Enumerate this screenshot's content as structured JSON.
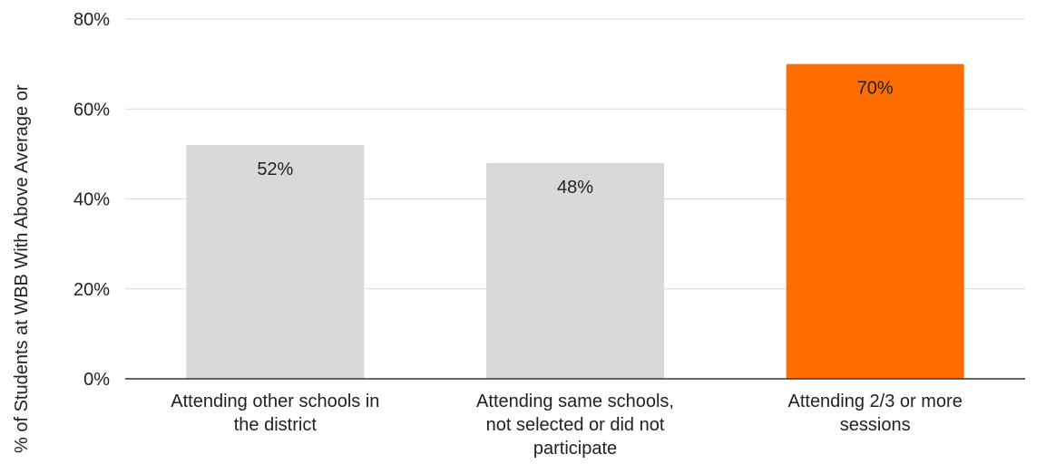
{
  "chart_data": {
    "type": "bar",
    "ylabel": "% of Students at WBB With Above Average or",
    "xlabel": "",
    "ylim": [
      0,
      80
    ],
    "yticks": [
      0,
      20,
      40,
      60,
      80
    ],
    "ytick_labels": [
      "0%",
      "20%",
      "40%",
      "60%",
      "80%"
    ],
    "grid": true,
    "categories": [
      [
        "Attending other schools in",
        "the district"
      ],
      [
        "Attending same schools,",
        "not selected or did not",
        "participate"
      ],
      [
        "Attending 2/3 or more",
        "sessions"
      ]
    ],
    "values": [
      52,
      48,
      70
    ],
    "value_labels": [
      "52%",
      "48%",
      "70%"
    ],
    "colors": [
      "#d9d9d9",
      "#d9d9d9",
      "#ff6d01"
    ]
  },
  "colors": {
    "grid": "#d9d9d9",
    "axis": "#333333",
    "text": "#222222"
  }
}
